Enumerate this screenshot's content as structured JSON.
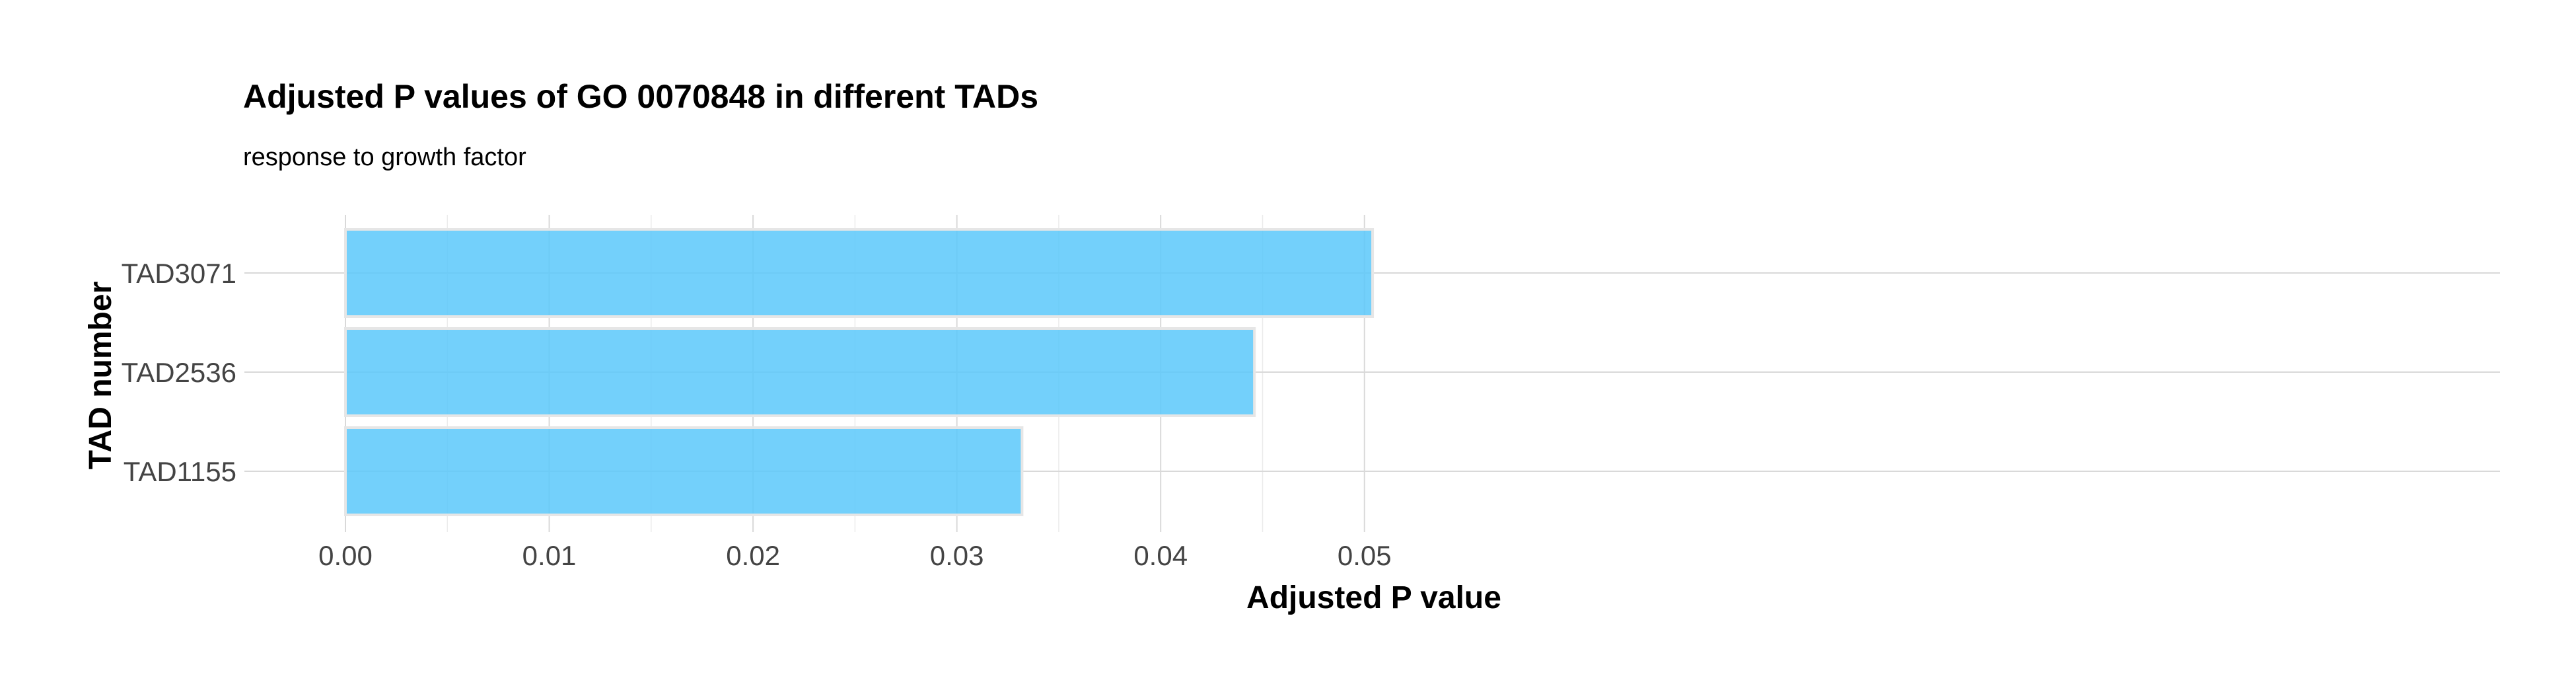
{
  "chart_data": {
    "type": "bar",
    "orientation": "horizontal",
    "title": "Adjusted P values of GO 0070848 in different TADs",
    "subtitle": "response to growth factor",
    "xlabel": "Adjusted P value",
    "ylabel": "TAD number",
    "categories": [
      "TAD3071",
      "TAD2536",
      "TAD1155"
    ],
    "values": [
      0.0504,
      0.0446,
      0.0332
    ],
    "xlim": [
      0,
      0.053
    ],
    "xticks": [
      0,
      0.01,
      0.02,
      0.03,
      0.04,
      0.05
    ],
    "xtick_labels": [
      "0.00",
      "0.01",
      "0.02",
      "0.03",
      "0.04",
      "0.05"
    ],
    "grid": true,
    "bar_color": "#5BC8FA",
    "bar_opacity": 0.85
  }
}
